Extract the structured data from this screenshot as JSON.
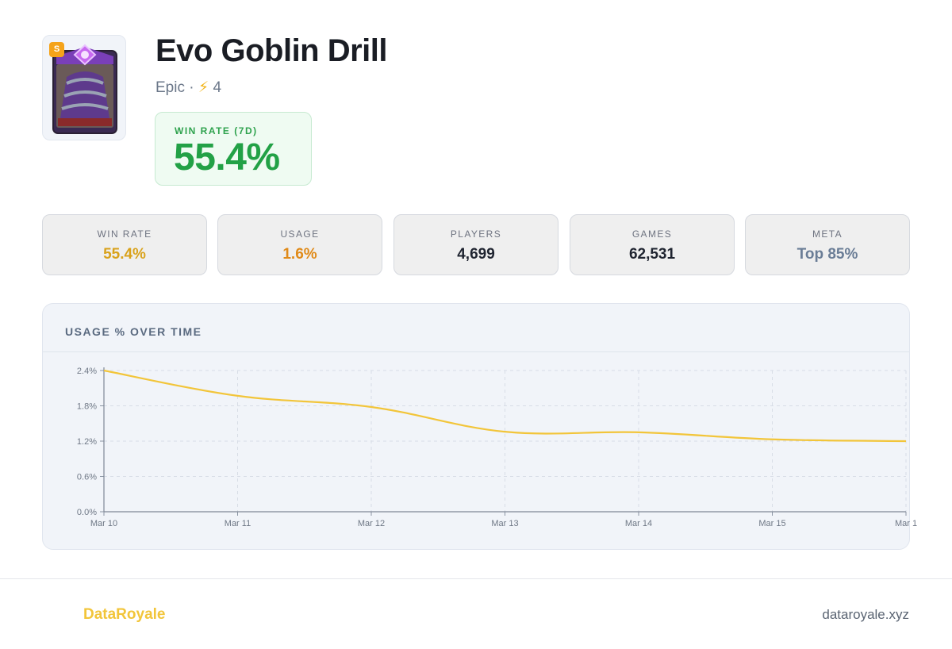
{
  "card": {
    "name": "Evo Goblin Drill",
    "tier": "S",
    "rarity": "Epic",
    "separator": "·",
    "elixir_icon": "⚡",
    "elixir": "4"
  },
  "headline": {
    "label": "WIN RATE (7D)",
    "value": "55.4%",
    "color": "#22a146"
  },
  "stats": [
    {
      "label": "WIN RATE",
      "value": "55.4%",
      "color": "#d9a21b"
    },
    {
      "label": "USAGE",
      "value": "1.6%",
      "color": "#e08a18"
    },
    {
      "label": "PLAYERS",
      "value": "4,699",
      "color": "#1f2430"
    },
    {
      "label": "GAMES",
      "value": "62,531",
      "color": "#1f2430"
    },
    {
      "label": "META",
      "value": "Top 85%",
      "color": "#6a7d96"
    }
  ],
  "chart_title": "USAGE % OVER TIME",
  "chart_data": {
    "type": "line",
    "x": [
      "Mar 10",
      "Mar 11",
      "Mar 12",
      "Mar 13",
      "Mar 14",
      "Mar 15",
      "Mar 1"
    ],
    "series": [
      {
        "values": [
          2.4,
          1.97,
          1.78,
          1.36,
          1.35,
          1.23,
          1.2
        ],
        "color": "#f2c53a"
      }
    ],
    "y_ticks": [
      "0.0%",
      "0.6%",
      "1.2%",
      "1.8%",
      "2.4%"
    ],
    "ylim": [
      0,
      2.4
    ],
    "grid": true
  },
  "footer": {
    "brand": "DataRoyale",
    "site": "dataroyale.xyz"
  }
}
